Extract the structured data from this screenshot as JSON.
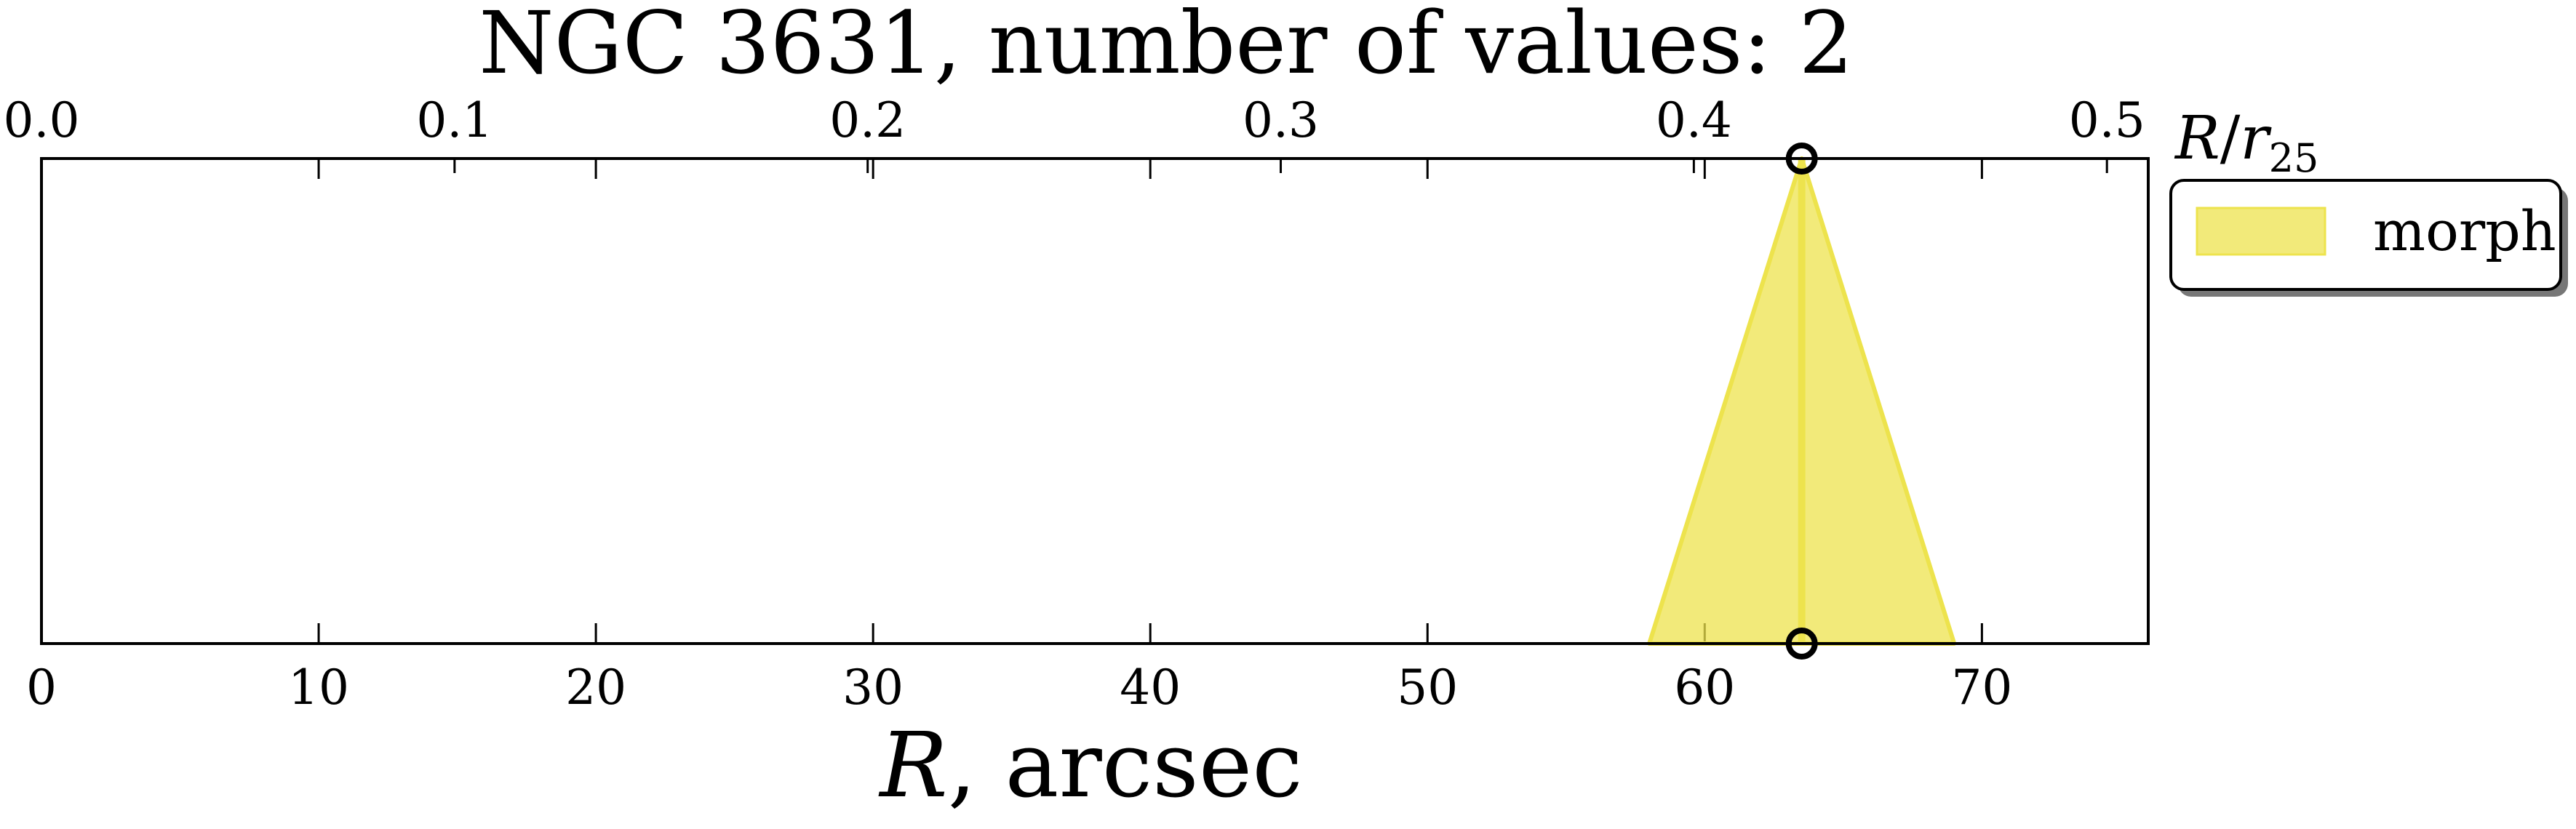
{
  "chart_data": {
    "type": "area",
    "title": "NGC 3631, number of values: 2",
    "xlabel_prefix": "R",
    "xlabel_suffix": ", arcsec",
    "top_xlabel_R": "R",
    "top_xlabel_slash": "/",
    "top_xlabel_r": "r",
    "top_xlabel_sub": "25",
    "xlim": [
      0,
      76
    ],
    "ylim": [
      0,
      1
    ],
    "x_ticks": [
      0,
      10,
      20,
      30,
      40,
      50,
      60,
      70
    ],
    "x_tick_labels": [
      "0",
      "10",
      "20",
      "30",
      "40",
      "50",
      "60",
      "70"
    ],
    "top_xlim": [
      0.0,
      0.51
    ],
    "top_x_ticks": [
      0.0,
      0.1,
      0.2,
      0.3,
      0.4,
      0.5
    ],
    "top_x_tick_labels": [
      "0.0",
      "0.1",
      "0.2",
      "0.3",
      "0.4",
      "0.5"
    ],
    "grid": false,
    "legend_position": "outside-top-right",
    "series": [
      {
        "name": "morph",
        "color": "#ede34d",
        "center": 63.5,
        "base_range": [
          58.0,
          69.0
        ],
        "markers": [
          {
            "x": 63.5,
            "y": 1
          },
          {
            "x": 63.5,
            "y": 0
          }
        ]
      }
    ]
  }
}
